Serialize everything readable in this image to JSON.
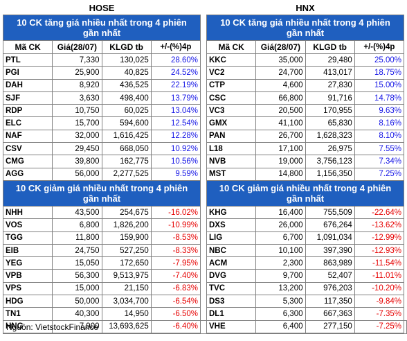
{
  "markets": [
    {
      "name": "HOSE",
      "gainers_title": "10 CK tăng giá nhiều nhất trong 4 phiên gần nhất",
      "headers": [
        "Mã CK",
        "Giá(28/07)",
        "KLGD tb",
        "+/-(%)4p"
      ],
      "gainers": [
        {
          "code": "PTL",
          "price": "7,330",
          "volume": "130,025",
          "change": "28.60%"
        },
        {
          "code": "PGI",
          "price": "25,900",
          "volume": "40,825",
          "change": "24.52%"
        },
        {
          "code": "DAH",
          "price": "8,920",
          "volume": "436,525",
          "change": "22.19%"
        },
        {
          "code": "SJF",
          "price": "3,630",
          "volume": "498,400",
          "change": "13.79%"
        },
        {
          "code": "RDP",
          "price": "10,750",
          "volume": "60,025",
          "change": "13.04%"
        },
        {
          "code": "ELC",
          "price": "15,700",
          "volume": "594,600",
          "change": "12.54%"
        },
        {
          "code": "NAF",
          "price": "32,000",
          "volume": "1,616,425",
          "change": "12.28%"
        },
        {
          "code": "CSV",
          "price": "29,450",
          "volume": "668,050",
          "change": "10.92%"
        },
        {
          "code": "CMG",
          "price": "39,800",
          "volume": "162,775",
          "change": "10.56%"
        },
        {
          "code": "AGG",
          "price": "56,000",
          "volume": "2,277,525",
          "change": "9.59%"
        }
      ],
      "losers_title": "10 CK giảm giá nhiều nhất trong 4 phiên gần nhất",
      "losers": [
        {
          "code": "NHH",
          "price": "43,500",
          "volume": "254,675",
          "change": "-16.02%"
        },
        {
          "code": "VOS",
          "price": "6,800",
          "volume": "1,826,200",
          "change": "-10.99%"
        },
        {
          "code": "TGG",
          "price": "11,800",
          "volume": "159,900",
          "change": "-8.53%"
        },
        {
          "code": "EIB",
          "price": "24,750",
          "volume": "527,250",
          "change": "-8.33%"
        },
        {
          "code": "YEG",
          "price": "15,050",
          "volume": "172,650",
          "change": "-7.95%"
        },
        {
          "code": "VPB",
          "price": "56,300",
          "volume": "9,513,975",
          "change": "-7.40%"
        },
        {
          "code": "VPS",
          "price": "15,000",
          "volume": "21,150",
          "change": "-6.83%"
        },
        {
          "code": "HDG",
          "price": "50,000",
          "volume": "3,034,700",
          "change": "-6.54%"
        },
        {
          "code": "TN1",
          "price": "40,300",
          "volume": "14,950",
          "change": "-6.50%"
        },
        {
          "code": "HNG",
          "price": "7,900",
          "volume": "13,693,625",
          "change": "-6.40%"
        }
      ]
    },
    {
      "name": "HNX",
      "gainers_title": "10 CK tăng giá nhiều nhất trong 4 phiên gần nhất",
      "headers": [
        "Mã CK",
        "Giá(28/07)",
        "KLGD tb",
        "+/-(%)4p"
      ],
      "gainers": [
        {
          "code": "KKC",
          "price": "35,000",
          "volume": "29,480",
          "change": "25.00%"
        },
        {
          "code": "VC2",
          "price": "24,700",
          "volume": "413,017",
          "change": "18.75%"
        },
        {
          "code": "CTP",
          "price": "4,600",
          "volume": "27,830",
          "change": "15.00%"
        },
        {
          "code": "CSC",
          "price": "66,800",
          "volume": "91,716",
          "change": "14.78%"
        },
        {
          "code": "VC3",
          "price": "20,500",
          "volume": "170,955",
          "change": "9.63%"
        },
        {
          "code": "GMX",
          "price": "41,100",
          "volume": "65,830",
          "change": "8.16%"
        },
        {
          "code": "PAN",
          "price": "26,700",
          "volume": "1,628,323",
          "change": "8.10%"
        },
        {
          "code": "L18",
          "price": "17,100",
          "volume": "26,975",
          "change": "7.55%"
        },
        {
          "code": "NVB",
          "price": "19,000",
          "volume": "3,756,123",
          "change": "7.34%"
        },
        {
          "code": "MST",
          "price": "14,800",
          "volume": "1,156,350",
          "change": "7.25%"
        }
      ],
      "losers_title": "10 CK giảm giá nhiều nhất trong 4 phiên gần nhất",
      "losers": [
        {
          "code": "KHG",
          "price": "16,400",
          "volume": "755,509",
          "change": "-22.64%"
        },
        {
          "code": "DXS",
          "price": "26,000",
          "volume": "676,264",
          "change": "-13.62%"
        },
        {
          "code": "LIG",
          "price": "6,700",
          "volume": "1,091,034",
          "change": "-12.99%"
        },
        {
          "code": "NBC",
          "price": "10,100",
          "volume": "397,390",
          "change": "-12.93%"
        },
        {
          "code": "ACM",
          "price": "2,300",
          "volume": "863,989",
          "change": "-11.54%"
        },
        {
          "code": "DVG",
          "price": "9,700",
          "volume": "52,407",
          "change": "-11.01%"
        },
        {
          "code": "TVC",
          "price": "13,200",
          "volume": "976,203",
          "change": "-10.20%"
        },
        {
          "code": "DS3",
          "price": "5,300",
          "volume": "117,350",
          "change": "-9.84%"
        },
        {
          "code": "DL1",
          "price": "6,300",
          "volume": "667,363",
          "change": "-7.35%"
        },
        {
          "code": "VHE",
          "price": "6,400",
          "volume": "277,150",
          "change": "-7.25%"
        }
      ]
    }
  ],
  "colors": {
    "title_bg": "#1f5fbf",
    "gain": "#1414e6",
    "loss": "#e60000"
  },
  "source": "Nguồn: VietstockFinance"
}
